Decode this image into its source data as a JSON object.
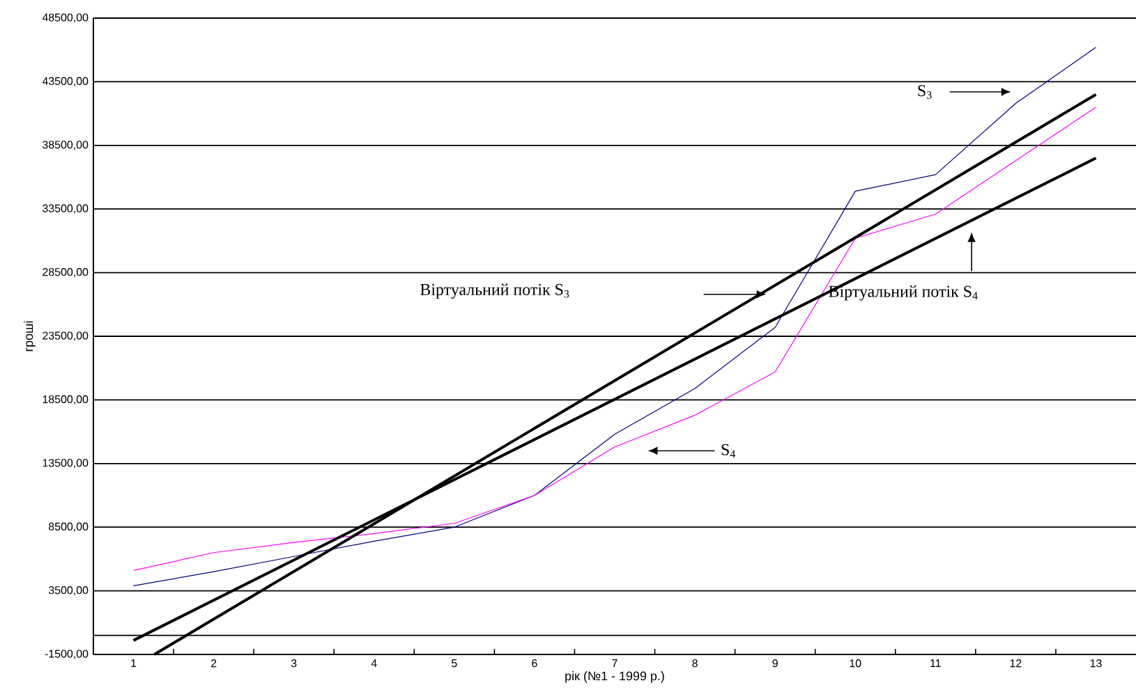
{
  "chart_data": {
    "type": "line",
    "xlabel": "рік (№1 - 1999 р.)",
    "ylabel": "гроші",
    "x": [
      1,
      2,
      3,
      4,
      5,
      6,
      7,
      8,
      9,
      10,
      11,
      12,
      13
    ],
    "xlim": [
      0.5,
      13.5
    ],
    "xticks": [
      1,
      2,
      3,
      4,
      5,
      6,
      7,
      8,
      9,
      10,
      11,
      12,
      13
    ],
    "ylim": [
      -1500,
      48500
    ],
    "yticks": [
      {
        "value": -1500,
        "label": "-1500,00"
      },
      {
        "value": 3500,
        "label": "3500,00"
      },
      {
        "value": 8500,
        "label": "8500,00"
      },
      {
        "value": 13500,
        "label": "13500,00"
      },
      {
        "value": 18500,
        "label": "18500,00"
      },
      {
        "value": 23500,
        "label": "23500,00"
      },
      {
        "value": 28500,
        "label": "28500,00"
      },
      {
        "value": 33500,
        "label": "33500,00"
      },
      {
        "value": 38500,
        "label": "38500,00"
      },
      {
        "value": 43500,
        "label": "43500,00"
      },
      {
        "value": 48500,
        "label": "48500,00"
      }
    ],
    "grid": "y",
    "marker": "none",
    "line_style": "solid",
    "ref_lines": [
      {
        "axis": "y",
        "value": 0,
        "color": "#000000"
      }
    ],
    "series": [
      {
        "color": "#000080",
        "values": [
          3900,
          5000,
          6200,
          7400,
          8500,
          11000,
          15800,
          19400,
          24200,
          34900,
          36200,
          41800,
          46200
        ]
      },
      {
        "color": "#ff00ff",
        "values": [
          5100,
          6500,
          7300,
          8000,
          8800,
          11000,
          14800,
          17300,
          20700,
          31200,
          33100,
          37300,
          41500
        ]
      },
      {
        "color": "#000000",
        "x": [
          1.26,
          13
        ],
        "values": [
          -1500,
          42500
        ]
      },
      {
        "color": "#000000",
        "x": [
          1,
          13
        ],
        "values": [
          -400,
          37500
        ]
      }
    ],
    "annotations": [
      "S$_{3}$",
      "Віртуальний потік S$_{3}$",
      "Віртуальний потік S$_{4}$",
      "S$_{4}$"
    ]
  }
}
